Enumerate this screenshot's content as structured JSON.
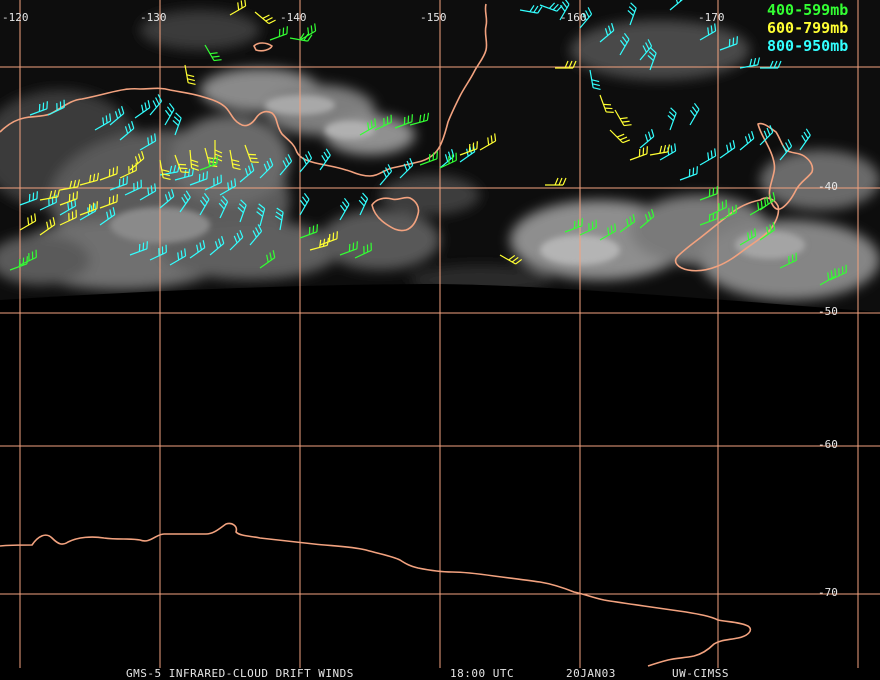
{
  "map": {
    "longitude_labels": [
      "-120",
      "-130",
      "-140",
      "-150",
      "-160",
      "-170"
    ],
    "latitude_labels": [
      "-40",
      "-50",
      "-60",
      "-70"
    ],
    "legend": [
      {
        "label": "400-599mb",
        "color": "#33ff33"
      },
      {
        "label": "600-799mb",
        "color": "#ffff33"
      },
      {
        "label": "800-950mb",
        "color": "#33ffff"
      }
    ],
    "footer": {
      "product": "GMS-5 INFRARED-CLOUD DRIFT WINDS",
      "time": "18:00 UTC",
      "date": "20JAN03",
      "source": "UW-CIMSS"
    },
    "colors": {
      "coastline": "#f2a27f",
      "grid": "#f2a27f",
      "background": "#000000",
      "clouds": "#9a9a9a"
    }
  }
}
